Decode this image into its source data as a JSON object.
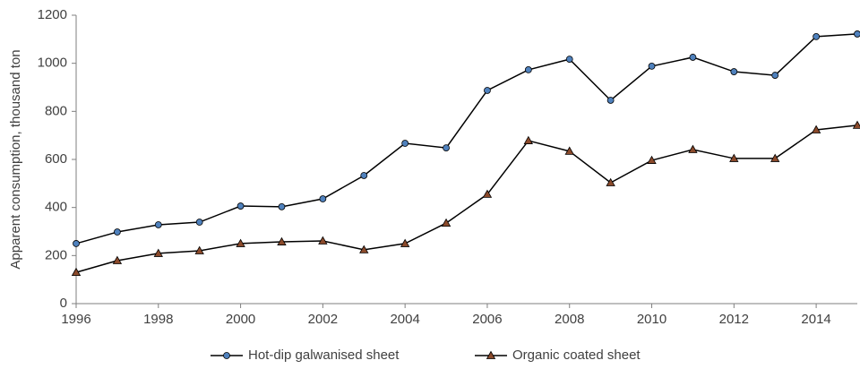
{
  "chart_data": {
    "type": "line",
    "y_label": "Apparent consumption, thousand ton",
    "x": [
      1996,
      1997,
      1998,
      1999,
      2000,
      2001,
      2002,
      2003,
      2004,
      2005,
      2006,
      2007,
      2008,
      2009,
      2010,
      2011,
      2012,
      2013,
      2014,
      2015
    ],
    "series": [
      {
        "name": "Hot-dip galwanised sheet",
        "color": "#4f81bd",
        "line_color": "#000000",
        "marker": "circle",
        "values": [
          250,
          298,
          328,
          339,
          406,
          403,
          436,
          533,
          667,
          648,
          887,
          973,
          1017,
          846,
          988,
          1025,
          965,
          950,
          1111,
          1122
        ]
      },
      {
        "name": "Organic coated sheet",
        "color": "#8b4a2b",
        "line_color": "#000000",
        "marker": "triangle",
        "values": [
          130,
          179,
          209,
          220,
          250,
          257,
          261,
          224,
          250,
          335,
          455,
          678,
          634,
          503,
          596,
          641,
          604,
          604,
          723,
          742
        ]
      }
    ],
    "xlim": [
      1996,
      2015
    ],
    "xticks": [
      1996,
      1998,
      2000,
      2002,
      2004,
      2006,
      2008,
      2010,
      2012,
      2014
    ],
    "ylim": [
      0,
      1200
    ],
    "yticks": [
      0,
      200,
      400,
      600,
      800,
      1000,
      1200
    ],
    "grid": false,
    "legend": "bottom"
  }
}
